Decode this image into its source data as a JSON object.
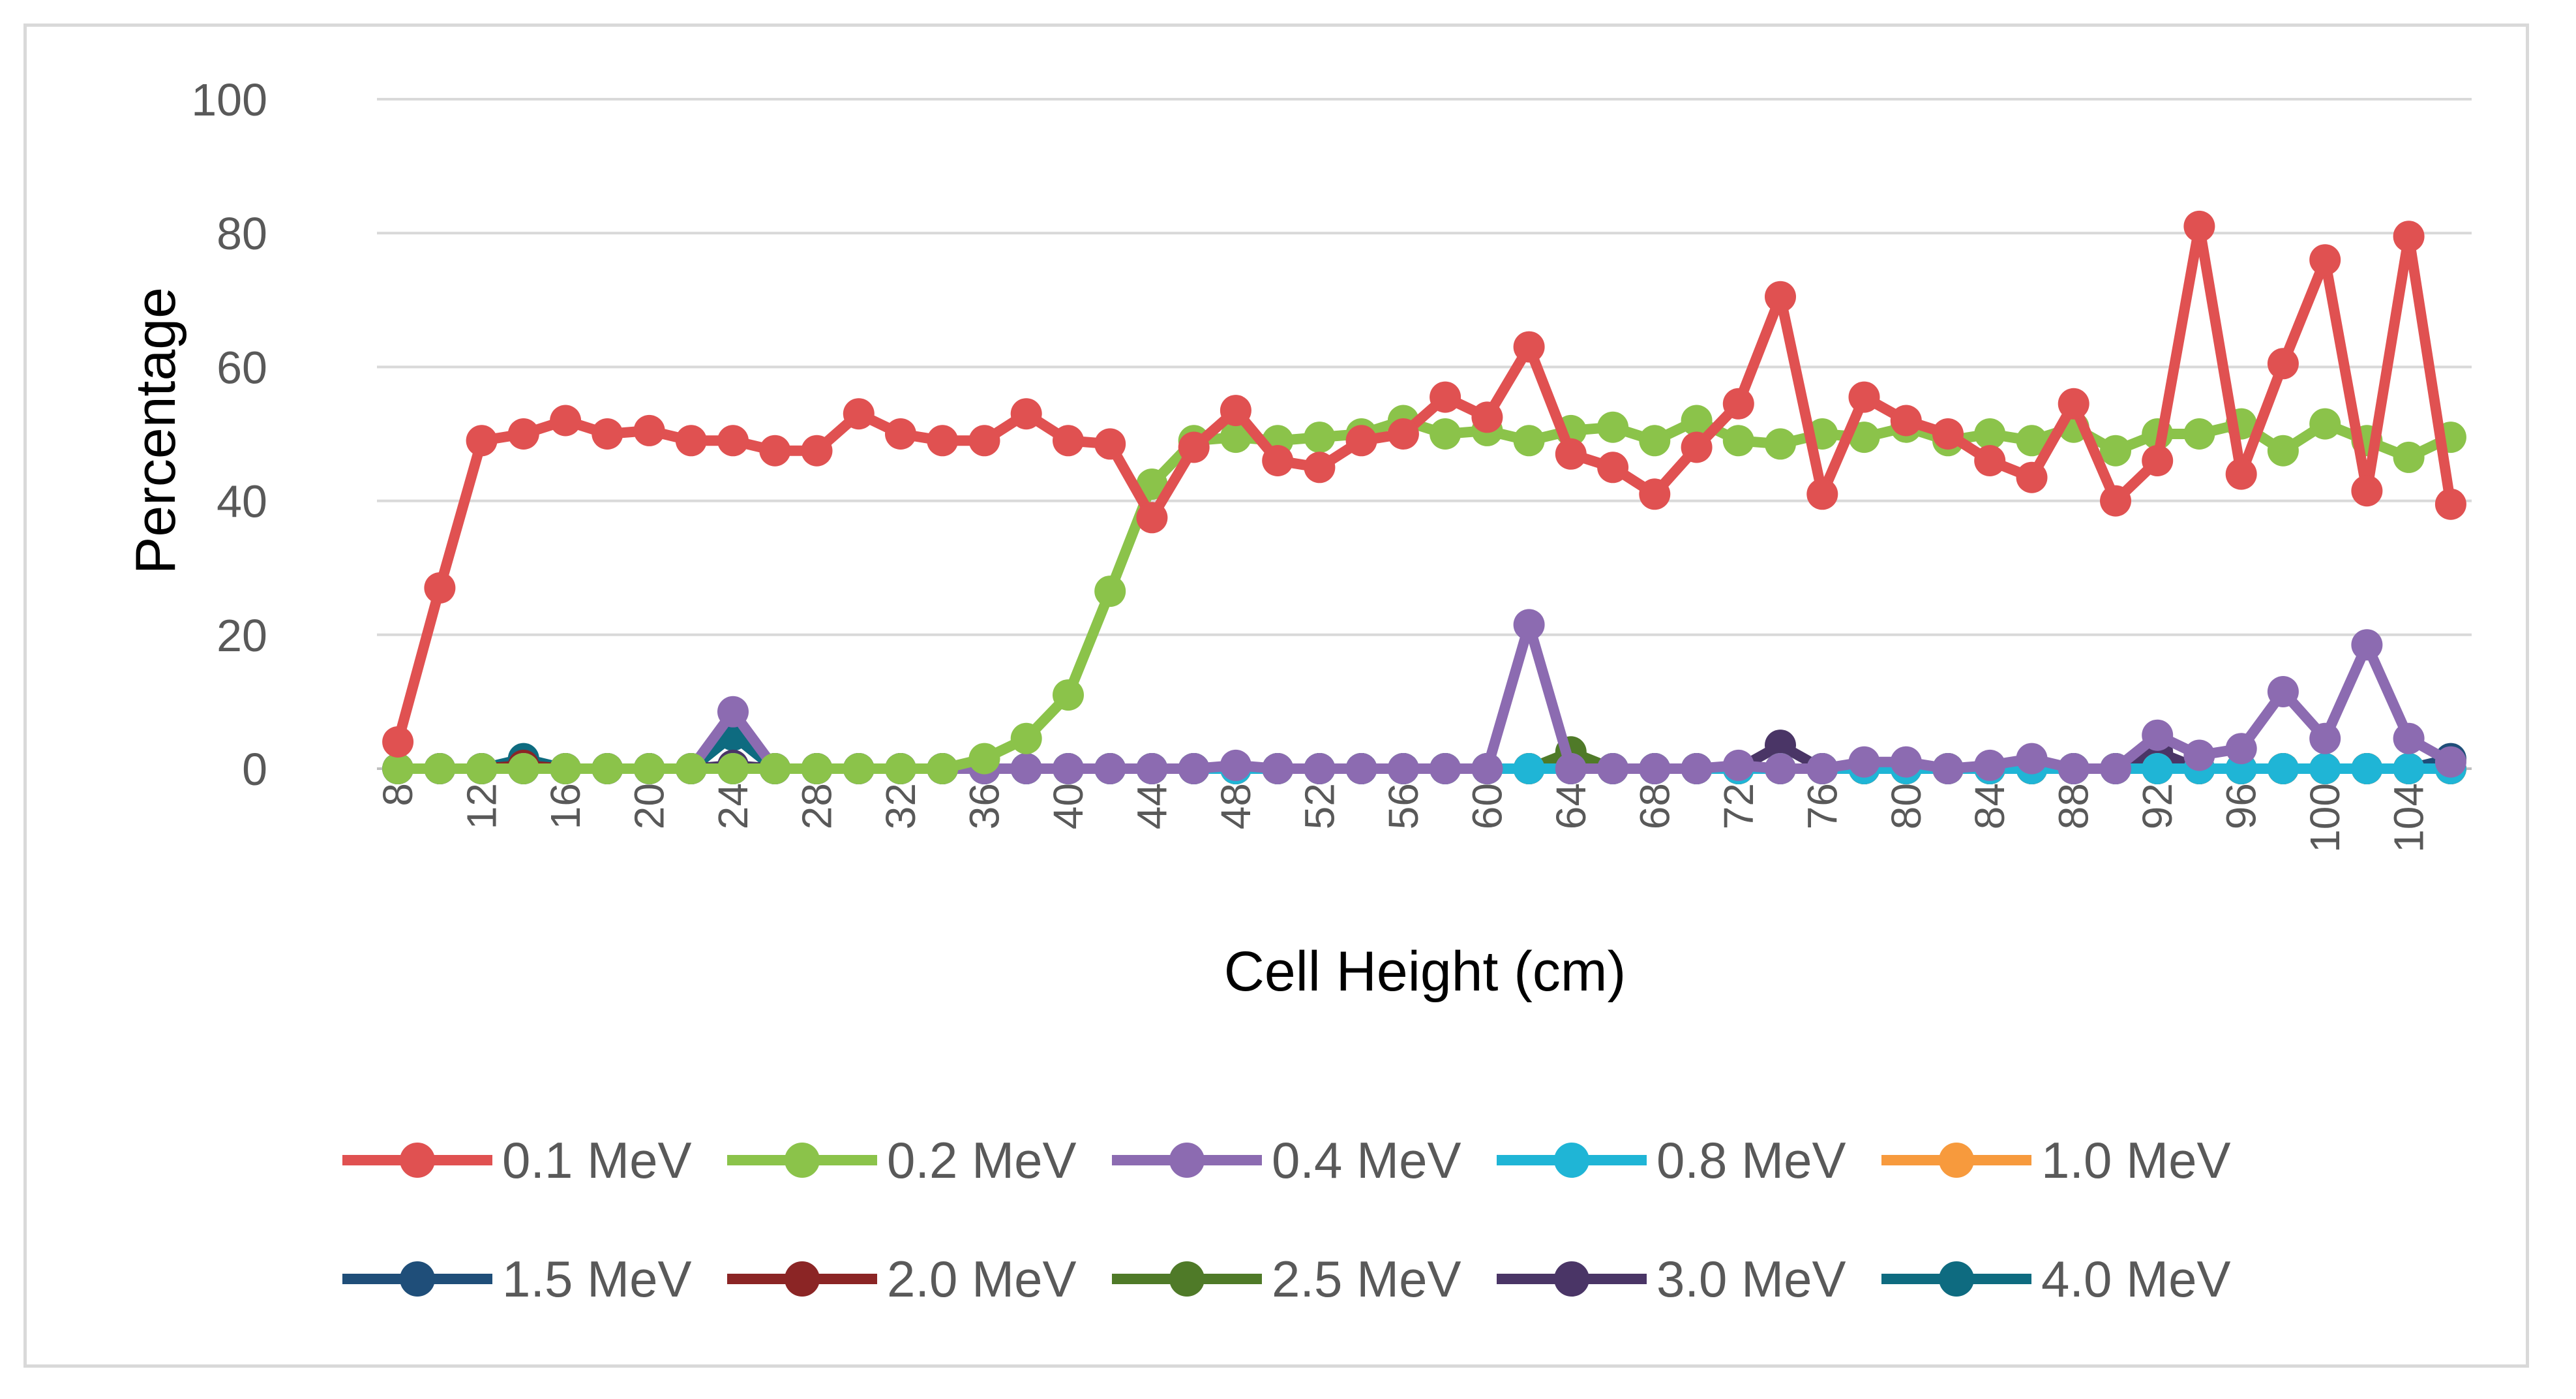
{
  "chart_data": {
    "type": "line",
    "title": "",
    "xlabel": "Cell Height (cm)",
    "ylabel": "Percentage",
    "ylim": [
      0,
      100
    ],
    "yticks": [
      0,
      20,
      40,
      60,
      80,
      100
    ],
    "grid": true,
    "legend_position": "bottom",
    "x": [
      8,
      10,
      12,
      14,
      16,
      18,
      20,
      22,
      24,
      26,
      28,
      30,
      32,
      34,
      36,
      38,
      40,
      42,
      44,
      46,
      48,
      50,
      52,
      54,
      56,
      58,
      60,
      62,
      64,
      66,
      68,
      70,
      72,
      74,
      76,
      78,
      80,
      82,
      84,
      86,
      88,
      90,
      92,
      94,
      96,
      98,
      100,
      102,
      104,
      106
    ],
    "x_tick_labels": [
      "8",
      "12",
      "16",
      "20",
      "24",
      "28",
      "32",
      "36",
      "40",
      "44",
      "48",
      "52",
      "56",
      "60",
      "64",
      "68",
      "72",
      "76",
      "80",
      "84",
      "88",
      "92",
      "96",
      "100",
      "104"
    ],
    "series": [
      {
        "name": "0.1 MeV",
        "color": "#e05151",
        "values": [
          4,
          27,
          49,
          50,
          52,
          50,
          50.5,
          49,
          49,
          47.5,
          47.5,
          53,
          50,
          49,
          49,
          53,
          49,
          48.5,
          37.5,
          48,
          53.5,
          46,
          45,
          49,
          50,
          55.5,
          52.5,
          63,
          47,
          45,
          41,
          48,
          54.5,
          70.5,
          41,
          55.5,
          52,
          50,
          46,
          43.5,
          54.5,
          40,
          46,
          81,
          44,
          60.5,
          76,
          41.5,
          79.5,
          39.5
        ]
      },
      {
        "name": "0.2 MeV",
        "color": "#8bc34a",
        "values": [
          0,
          0,
          0,
          0,
          0,
          0,
          0,
          0,
          0,
          0,
          0,
          0,
          0,
          0,
          1.5,
          4.5,
          11,
          26.5,
          42.5,
          49,
          49.5,
          49,
          49.5,
          50,
          52,
          50,
          50.5,
          49,
          50.5,
          51,
          49,
          52,
          49,
          48.5,
          50,
          49.5,
          51,
          49,
          50,
          49,
          51,
          47.5,
          50,
          50,
          51.5,
          47.5,
          51.5,
          49,
          46.5,
          49.5
        ]
      },
      {
        "name": "0.4 MeV",
        "color": "#8c6bb1",
        "values": [
          0,
          0,
          0,
          0,
          0,
          0,
          0,
          0,
          8.5,
          0,
          0,
          0,
          0,
          0,
          0,
          0,
          0,
          0,
          0,
          0,
          0.5,
          0,
          0,
          0,
          0,
          0,
          0,
          21.5,
          0,
          0,
          0,
          0,
          0.5,
          0,
          0,
          1,
          1,
          0,
          0.5,
          1.5,
          0,
          0,
          5,
          2,
          3,
          11.5,
          4.5,
          18.5,
          4.5,
          1
        ]
      },
      {
        "name": "0.8 MeV",
        "color": "#1fb5d6",
        "values": [
          0,
          0,
          0,
          0,
          0,
          0,
          0,
          0,
          0,
          0,
          0,
          0,
          0,
          0,
          0,
          0,
          0,
          0,
          0,
          0,
          0,
          0,
          0,
          0,
          0,
          0,
          0,
          0,
          0,
          0,
          0,
          0,
          0,
          0,
          0,
          0,
          0,
          0,
          0,
          0,
          0,
          0,
          0,
          0,
          0,
          0,
          0,
          0,
          0,
          0
        ]
      },
      {
        "name": "1.0 MeV",
        "color": "#f79a3d",
        "values": [
          0,
          0,
          0,
          0,
          0,
          0,
          0,
          0,
          0,
          0,
          0,
          0,
          0,
          0,
          0,
          0,
          0,
          0,
          0,
          0,
          0,
          0,
          0,
          0,
          0,
          0,
          0,
          0,
          0,
          0,
          0,
          0,
          0,
          0,
          0,
          0,
          0,
          0,
          0,
          0,
          0,
          0,
          0,
          0,
          0,
          0,
          0,
          0,
          0,
          0
        ]
      },
      {
        "name": "1.5 MeV",
        "color": "#1f4e79",
        "values": [
          0,
          0,
          0,
          0,
          0,
          0,
          0,
          0,
          0,
          0,
          0,
          0,
          0,
          0,
          0,
          0,
          0,
          0,
          0,
          0,
          0,
          0,
          0,
          0,
          0,
          0,
          0,
          0,
          0,
          0,
          0,
          0,
          0,
          0,
          0,
          0,
          0,
          0,
          0,
          0,
          0,
          0,
          0,
          0,
          0,
          0,
          0,
          0,
          0,
          1.5
        ]
      },
      {
        "name": "2.0 MeV",
        "color": "#8b2525",
        "values": [
          0,
          0,
          0,
          0.5,
          0,
          0,
          0,
          0,
          0,
          0,
          0,
          0,
          0,
          0,
          0,
          0,
          0,
          0,
          0,
          0,
          0,
          0,
          0,
          0,
          0,
          0,
          0,
          0,
          0,
          0,
          0,
          0,
          0,
          0,
          0,
          0,
          0,
          0,
          0,
          0,
          0,
          0,
          0,
          0,
          0,
          0,
          0,
          0,
          0,
          0
        ]
      },
      {
        "name": "2.5 MeV",
        "color": "#4f7a28",
        "values": [
          0,
          0,
          0,
          0,
          0,
          0,
          0,
          0,
          0,
          0,
          0,
          0,
          0,
          0,
          0,
          0,
          0,
          0,
          0,
          0,
          0,
          0,
          0,
          0,
          0,
          0,
          0,
          0,
          2.5,
          0,
          0,
          0,
          0,
          0,
          0,
          0,
          0,
          0,
          0,
          0,
          0,
          0,
          0,
          0,
          0,
          0,
          0,
          0,
          0,
          0
        ]
      },
      {
        "name": "3.0 MeV",
        "color": "#4a3566",
        "values": [
          0,
          0,
          0,
          0,
          0,
          0,
          0,
          0,
          0.5,
          0,
          0,
          0,
          0,
          0,
          0,
          0,
          0,
          0,
          0,
          0,
          0,
          0,
          0,
          0,
          0,
          0,
          0,
          0,
          0,
          0,
          0,
          0,
          0,
          3.5,
          0,
          0,
          0,
          0,
          0,
          0,
          0,
          0,
          2.5,
          0,
          0,
          0,
          0,
          0,
          0,
          0
        ]
      },
      {
        "name": "4.0 MeV",
        "color": "#0e6b80",
        "values": [
          0,
          0,
          0,
          1.5,
          0,
          0,
          0,
          0,
          5,
          0,
          0,
          0,
          0,
          0,
          0,
          0,
          0,
          0,
          0,
          0,
          0,
          0,
          0,
          0,
          0,
          0,
          0,
          0,
          0,
          0,
          0,
          0,
          0,
          0,
          0,
          0,
          0,
          0,
          0,
          0,
          0,
          0,
          0,
          0,
          0,
          0,
          0,
          0,
          0,
          0
        ]
      }
    ]
  }
}
